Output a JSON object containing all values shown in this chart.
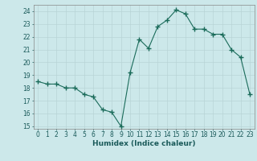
{
  "x": [
    0,
    1,
    2,
    3,
    4,
    5,
    6,
    7,
    8,
    9,
    10,
    11,
    12,
    13,
    14,
    15,
    16,
    17,
    18,
    19,
    20,
    21,
    22,
    23
  ],
  "y": [
    18.5,
    18.3,
    18.3,
    18.0,
    18.0,
    17.5,
    17.3,
    16.3,
    16.1,
    15.0,
    19.2,
    21.8,
    21.1,
    22.8,
    23.3,
    24.1,
    23.8,
    22.6,
    22.6,
    22.2,
    22.2,
    21.0,
    20.4,
    17.5
  ],
  "line_color": "#1a6b5a",
  "marker": "+",
  "marker_size": 4,
  "bg_color": "#cce8ea",
  "grid_color": "#b8d4d6",
  "xlabel": "Humidex (Indice chaleur)",
  "ylim": [
    14.8,
    24.5
  ],
  "xlim": [
    -0.5,
    23.5
  ],
  "yticks": [
    15,
    16,
    17,
    18,
    19,
    20,
    21,
    22,
    23,
    24
  ],
  "xticks": [
    0,
    1,
    2,
    3,
    4,
    5,
    6,
    7,
    8,
    9,
    10,
    11,
    12,
    13,
    14,
    15,
    16,
    17,
    18,
    19,
    20,
    21,
    22,
    23
  ],
  "xlabel_fontsize": 6.5,
  "tick_fontsize": 5.5,
  "marker_color": "#1a6b5a",
  "line_width": 0.8
}
